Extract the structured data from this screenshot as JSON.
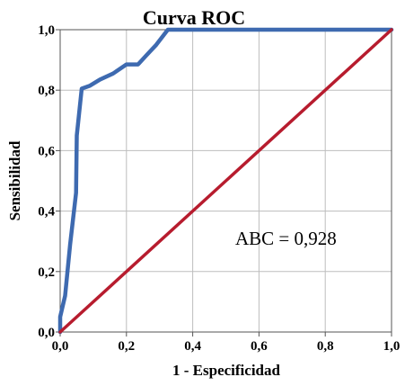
{
  "chart_data": {
    "type": "line",
    "title": "Curva ROC",
    "xlabel": "1 - Especificidad",
    "ylabel": "Sensibilidad",
    "xlim": [
      0,
      1
    ],
    "ylim": [
      0,
      1
    ],
    "grid": true,
    "x_ticks": [
      "0,0",
      "0,2",
      "0,4",
      "0,6",
      "0,8",
      "1,0"
    ],
    "y_ticks": [
      "0,0",
      "0,2",
      "0,4",
      "0,6",
      "0,8",
      "1,0"
    ],
    "annotation": "ABC = 0,928",
    "series": [
      {
        "color": "#3e6ab0",
        "points": [
          [
            0,
            0
          ],
          [
            0,
            0.05
          ],
          [
            0.015,
            0.12
          ],
          [
            0.03,
            0.29
          ],
          [
            0.048,
            0.46
          ],
          [
            0.05,
            0.65
          ],
          [
            0.065,
            0.805
          ],
          [
            0.09,
            0.815
          ],
          [
            0.12,
            0.835
          ],
          [
            0.16,
            0.855
          ],
          [
            0.2,
            0.885
          ],
          [
            0.235,
            0.885
          ],
          [
            0.26,
            0.915
          ],
          [
            0.29,
            0.95
          ],
          [
            0.325,
            1.0
          ],
          [
            1.0,
            1.0
          ]
        ]
      },
      {
        "color": "#b71c2e",
        "points": [
          [
            0,
            0
          ],
          [
            1,
            1
          ]
        ]
      }
    ]
  }
}
